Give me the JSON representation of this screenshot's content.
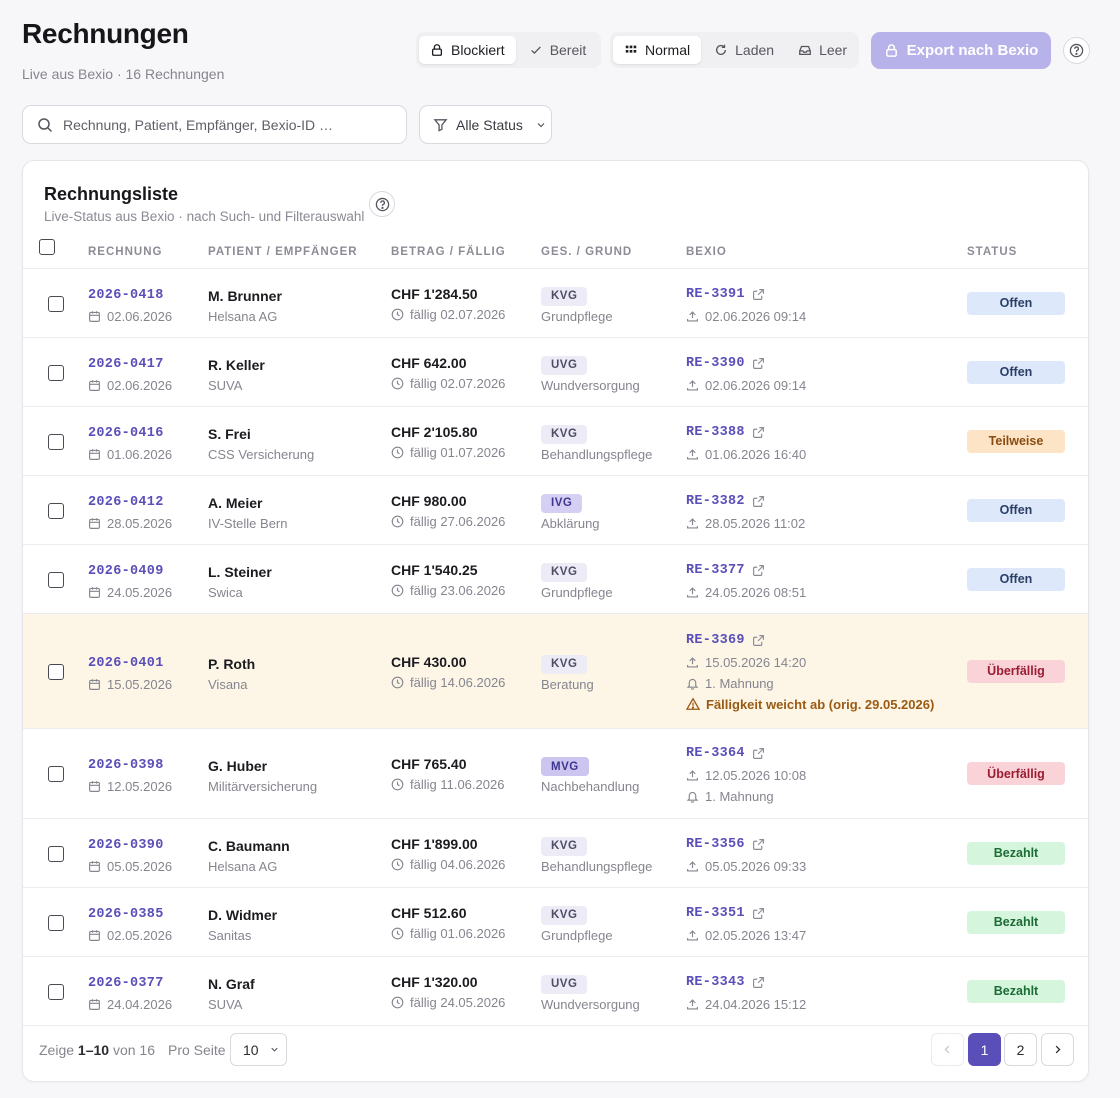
{
  "header": {
    "title": "Rechnungen",
    "subtitle": "Live aus Bexio · 16 Rechnungen"
  },
  "export_mode": {
    "options": [
      "Blockiert",
      "Bereit"
    ],
    "selected": "Blockiert"
  },
  "data_mode": {
    "options": [
      "Normal",
      "Laden",
      "Leer"
    ],
    "selected": "Normal"
  },
  "export_button": "Export nach Bexio",
  "search": {
    "placeholder": "Rechnung, Patient, Empfänger, Bexio-ID …",
    "value": ""
  },
  "filter": {
    "label": "Alle Status"
  },
  "card": {
    "title": "Rechnungsliste",
    "subtitle": "Live-Status aus Bexio · nach Such- und Filterauswahl"
  },
  "columns": [
    "RECHNUNG",
    "PATIENT / EMPFÄNGER",
    "BETRAG / FÄLLIG",
    "GES. / GRUND",
    "BEXIO",
    "STATUS"
  ],
  "rows": [
    {
      "invoice": "2026-0418",
      "date": "02.06.2026",
      "patient": "M. Brunner",
      "recipient": "Helsana AG",
      "amount": "CHF 1'284.50",
      "due": "fällig 02.07.2026",
      "ges": "KVG",
      "reason": "Grundpflege",
      "bexio_id": "RE-3391",
      "exported": "02.06.2026 09:14",
      "reminder": "",
      "warning": "",
      "status": "Offen"
    },
    {
      "invoice": "2026-0417",
      "date": "02.06.2026",
      "patient": "R. Keller",
      "recipient": "SUVA",
      "amount": "CHF 642.00",
      "due": "fällig 02.07.2026",
      "ges": "UVG",
      "reason": "Wundversorgung",
      "bexio_id": "RE-3390",
      "exported": "02.06.2026 09:14",
      "reminder": "",
      "warning": "",
      "status": "Offen"
    },
    {
      "invoice": "2026-0416",
      "date": "01.06.2026",
      "patient": "S. Frei",
      "recipient": "CSS Versicherung",
      "amount": "CHF 2'105.80",
      "due": "fällig 01.07.2026",
      "ges": "KVG",
      "reason": "Behandlungspflege",
      "bexio_id": "RE-3388",
      "exported": "01.06.2026 16:40",
      "reminder": "",
      "warning": "",
      "status": "Teilweise"
    },
    {
      "invoice": "2026-0412",
      "date": "28.05.2026",
      "patient": "A. Meier",
      "recipient": "IV-Stelle Bern",
      "amount": "CHF 980.00",
      "due": "fällig 27.06.2026",
      "ges": "IVG",
      "reason": "Abklärung",
      "bexio_id": "RE-3382",
      "exported": "28.05.2026 11:02",
      "reminder": "",
      "warning": "",
      "status": "Offen"
    },
    {
      "invoice": "2026-0409",
      "date": "24.05.2026",
      "patient": "L. Steiner",
      "recipient": "Swica",
      "amount": "CHF 1'540.25",
      "due": "fällig 23.06.2026",
      "ges": "KVG",
      "reason": "Grundpflege",
      "bexio_id": "RE-3377",
      "exported": "24.05.2026 08:51",
      "reminder": "",
      "warning": "",
      "status": "Offen"
    },
    {
      "invoice": "2026-0401",
      "date": "15.05.2026",
      "patient": "P. Roth",
      "recipient": "Visana",
      "amount": "CHF 430.00",
      "due": "fällig 14.06.2026",
      "ges": "KVG",
      "reason": "Beratung",
      "bexio_id": "RE-3369",
      "exported": "15.05.2026 14:20",
      "reminder": "1. Mahnung",
      "warning": "Fälligkeit weicht ab (orig. 29.05.2026)",
      "status": "Überfällig"
    },
    {
      "invoice": "2026-0398",
      "date": "12.05.2026",
      "patient": "G. Huber",
      "recipient": "Militärversicherung",
      "amount": "CHF 765.40",
      "due": "fällig 11.06.2026",
      "ges": "MVG",
      "reason": "Nachbehandlung",
      "bexio_id": "RE-3364",
      "exported": "12.05.2026 10:08",
      "reminder": "1. Mahnung",
      "warning": "",
      "status": "Überfällig"
    },
    {
      "invoice": "2026-0390",
      "date": "05.05.2026",
      "patient": "C. Baumann",
      "recipient": "Helsana AG",
      "amount": "CHF 1'899.00",
      "due": "fällig 04.06.2026",
      "ges": "KVG",
      "reason": "Behandlungspflege",
      "bexio_id": "RE-3356",
      "exported": "05.05.2026 09:33",
      "reminder": "",
      "warning": "",
      "status": "Bezahlt"
    },
    {
      "invoice": "2026-0385",
      "date": "02.05.2026",
      "patient": "D. Widmer",
      "recipient": "Sanitas",
      "amount": "CHF 512.60",
      "due": "fällig 01.06.2026",
      "ges": "KVG",
      "reason": "Grundpflege",
      "bexio_id": "RE-3351",
      "exported": "02.05.2026 13:47",
      "reminder": "",
      "warning": "",
      "status": "Bezahlt"
    },
    {
      "invoice": "2026-0377",
      "date": "24.04.2026",
      "patient": "N. Graf",
      "recipient": "SUVA",
      "amount": "CHF 1'320.00",
      "due": "fällig 24.05.2026",
      "ges": "UVG",
      "reason": "Wundversorgung",
      "bexio_id": "RE-3343",
      "exported": "24.04.2026 15:12",
      "reminder": "",
      "warning": "",
      "status": "Bezahlt"
    }
  ],
  "footer": {
    "showing_prefix": "Zeige",
    "showing_range": "1–10",
    "showing_suffix": "von 16",
    "per_page_label": "Pro Seite",
    "per_page_value": "10",
    "pages": [
      "1",
      "2"
    ],
    "current_page": "1"
  },
  "colors": {
    "accent": "#5a4fb8",
    "accent_disabled": "#b8b2ea",
    "overdue_highlight": "#fdf6e7"
  }
}
